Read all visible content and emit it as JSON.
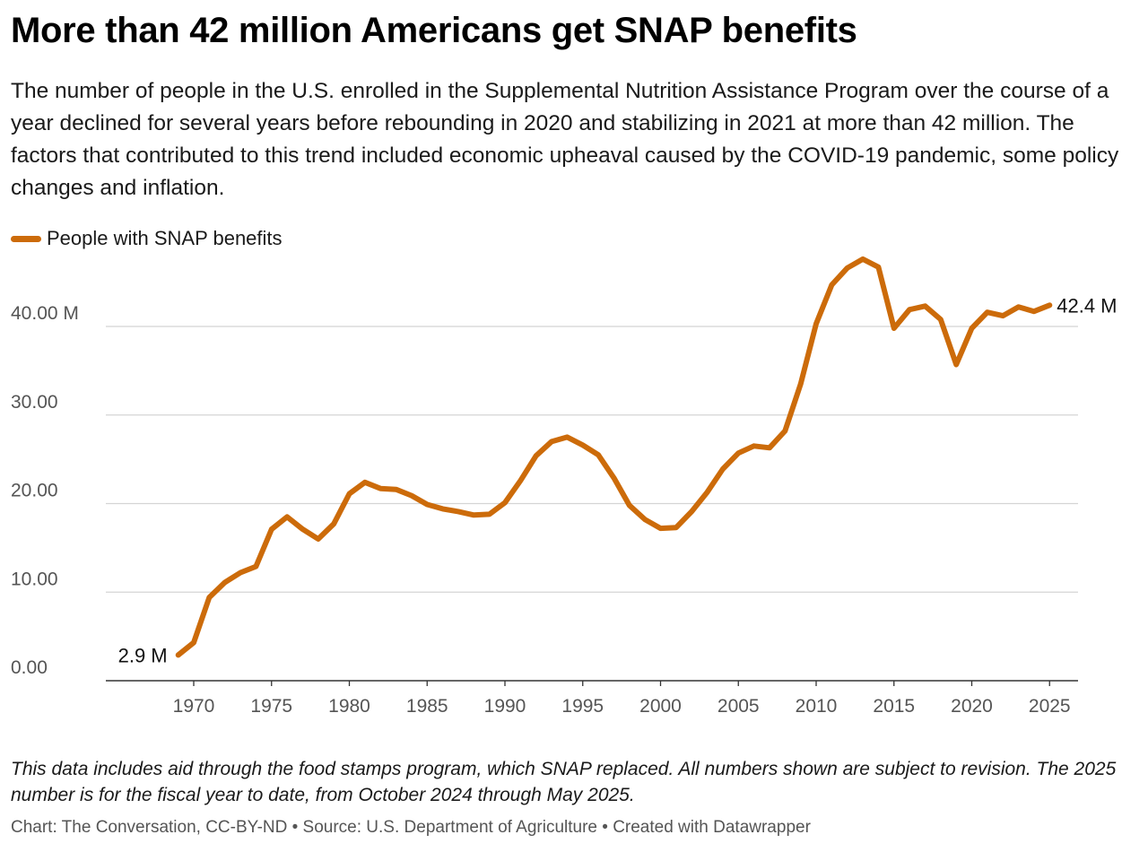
{
  "colors": {
    "series": "#cc6b0a",
    "grid": "#d4d4d4",
    "axis": "#333333"
  },
  "footer": {
    "source_line": "Chart: The Conversation, CC-BY-ND • Source: U.S. Department of Agriculture • Created with Datawrapper"
  },
  "chart_data": {
    "type": "line",
    "title": "More than 42 million Americans get SNAP benefits",
    "subtitle": "The number of people in the U.S. enrolled in the Supplemental Nutrition Assistance Program over the course of a year declined for several years before rebounding in 2020 and stabilizing in 2021 at more than 42 million. The factors that contributed to this trend included economic upheaval caused by the COVID-19 pandemic, some policy changes and inflation.",
    "notes": "This data includes aid through the food stamps program, which SNAP replaced. All numbers shown are subject to revision. The 2025 number is for the fiscal year to date, from October 2024 through May 2025.",
    "xlim": [
      1965,
      2026
    ],
    "ylim": [
      0,
      48
    ],
    "x_ticks": [
      1970,
      1975,
      1980,
      1985,
      1990,
      1995,
      2000,
      2005,
      2010,
      2015,
      2020,
      2025
    ],
    "y_ticks": [
      {
        "value": 0,
        "label": "0.00"
      },
      {
        "value": 10,
        "label": "10.00"
      },
      {
        "value": 20,
        "label": "20.00"
      },
      {
        "value": 30,
        "label": "30.00"
      },
      {
        "value": 40,
        "label": "40.00 M"
      }
    ],
    "grid": true,
    "legend_position": "top-left",
    "series": [
      {
        "name": "People with SNAP benefits",
        "x": [
          1969,
          1970,
          1971,
          1972,
          1973,
          1974,
          1975,
          1976,
          1977,
          1978,
          1979,
          1980,
          1981,
          1982,
          1983,
          1984,
          1985,
          1986,
          1987,
          1988,
          1989,
          1990,
          1991,
          1992,
          1993,
          1994,
          1995,
          1996,
          1997,
          1998,
          1999,
          2000,
          2001,
          2002,
          2003,
          2004,
          2005,
          2006,
          2007,
          2008,
          2009,
          2010,
          2011,
          2012,
          2013,
          2014,
          2015,
          2016,
          2017,
          2018,
          2019,
          2020,
          2021,
          2022,
          2023,
          2024,
          2025
        ],
        "values": [
          2.9,
          4.3,
          9.4,
          11.1,
          12.2,
          12.9,
          17.1,
          18.5,
          17.1,
          16.0,
          17.7,
          21.1,
          22.4,
          21.7,
          21.6,
          20.9,
          19.9,
          19.4,
          19.1,
          18.7,
          18.8,
          20.1,
          22.6,
          25.4,
          27.0,
          27.5,
          26.6,
          25.5,
          22.9,
          19.8,
          18.2,
          17.2,
          17.3,
          19.1,
          21.3,
          23.9,
          25.7,
          26.5,
          26.3,
          28.2,
          33.5,
          40.3,
          44.7,
          46.6,
          47.6,
          46.7,
          39.8,
          41.9,
          42.3,
          40.8,
          35.7,
          39.8,
          41.6,
          41.2,
          42.2,
          41.7,
          42.4
        ]
      }
    ],
    "annotations": [
      {
        "x": 1969,
        "y": 2.9,
        "text": "2.9 M",
        "anchor": "left"
      },
      {
        "x": 2025,
        "y": 42.4,
        "text": "42.4 M",
        "anchor": "right"
      }
    ]
  }
}
